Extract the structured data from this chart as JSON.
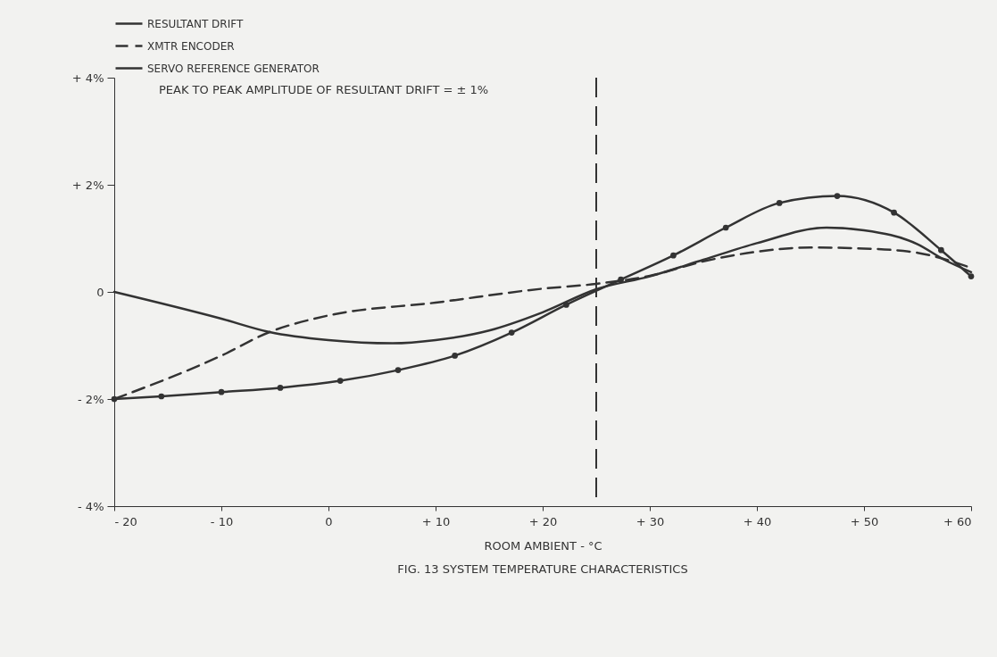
{
  "chart_data": {
    "type": "line",
    "title": "FIG. 13 SYSTEM TEMPERATURE CHARACTERISTICS",
    "xlabel": "ROOM AMBIENT - °C",
    "annotations": [
      "PEAK TO PEAK AMPLITUDE OF RESULTANT DRIFT = ± 1%"
    ],
    "xlim": [
      -20,
      60
    ],
    "xticks": [
      {
        "value": -20,
        "label": "- 20"
      },
      {
        "value": -10,
        "label": "- 10"
      },
      0,
      {
        "value": 10,
        "label": "+ 10"
      },
      {
        "value": 20,
        "label": "+ 20"
      },
      {
        "value": 30,
        "label": "+ 30"
      },
      {
        "value": 40,
        "label": "+ 40"
      },
      {
        "value": 50,
        "label": "+ 50"
      },
      {
        "value": 60,
        "label": "+ 60"
      }
    ],
    "ylim": [
      -4,
      4
    ],
    "yticks": [
      {
        "value": -4,
        "label": "- 4%"
      },
      {
        "value": -2,
        "label": "- 2%"
      },
      0,
      {
        "value": 2,
        "label": "+ 2%"
      },
      {
        "value": 4,
        "label": "+ 4%"
      }
    ],
    "grid": false,
    "legend": "top left",
    "ref_lines": [
      {
        "axis": "x",
        "value": 25,
        "color": "#333333",
        "line_style": "dashed"
      }
    ],
    "series": [
      {
        "name": "RESULTANT DRIFT",
        "color": "#333333",
        "line_style": "solid",
        "marker": "none",
        "x": [
          -20,
          -10,
          -5.5,
          0,
          6,
          10,
          15,
          20,
          25,
          30,
          35,
          40,
          46.5,
          50,
          55,
          57.5,
          60
        ],
        "values": [
          0,
          -0.5,
          -0.75,
          -0.9,
          -0.96,
          -0.9,
          -0.72,
          -0.38,
          0.05,
          0.29,
          0.6,
          0.91,
          1.2,
          1.15,
          0.89,
          0.6,
          0.37
        ]
      },
      {
        "name": "XMTR ENCODER",
        "color": "#333333",
        "line_style": "dashed",
        "marker": "none",
        "x": [
          -20,
          -10,
          -5.5,
          0,
          10,
          20,
          25,
          30,
          35,
          40,
          45,
          50,
          55,
          60
        ],
        "values": [
          -2,
          -1.19,
          -0.75,
          -0.44,
          -0.2,
          0.06,
          0.15,
          0.3,
          0.57,
          0.75,
          0.83,
          0.81,
          0.73,
          0.45
        ]
      },
      {
        "name": "SERVO REFERENCE GENERATOR",
        "color": "#333333",
        "line_style": "solid",
        "marker": "circle",
        "x": [
          -20,
          -15.6,
          -10,
          -4.5,
          1.1,
          6.5,
          11.8,
          17.1,
          22.2,
          27.3,
          32.2,
          37.1,
          42.1,
          47.5,
          52.8,
          57.2,
          60
        ],
        "values": [
          -2,
          -1.95,
          -1.87,
          -1.79,
          -1.66,
          -1.46,
          -1.19,
          -0.76,
          -0.24,
          0.23,
          0.68,
          1.2,
          1.66,
          1.79,
          1.48,
          0.78,
          0.29
        ]
      }
    ]
  }
}
